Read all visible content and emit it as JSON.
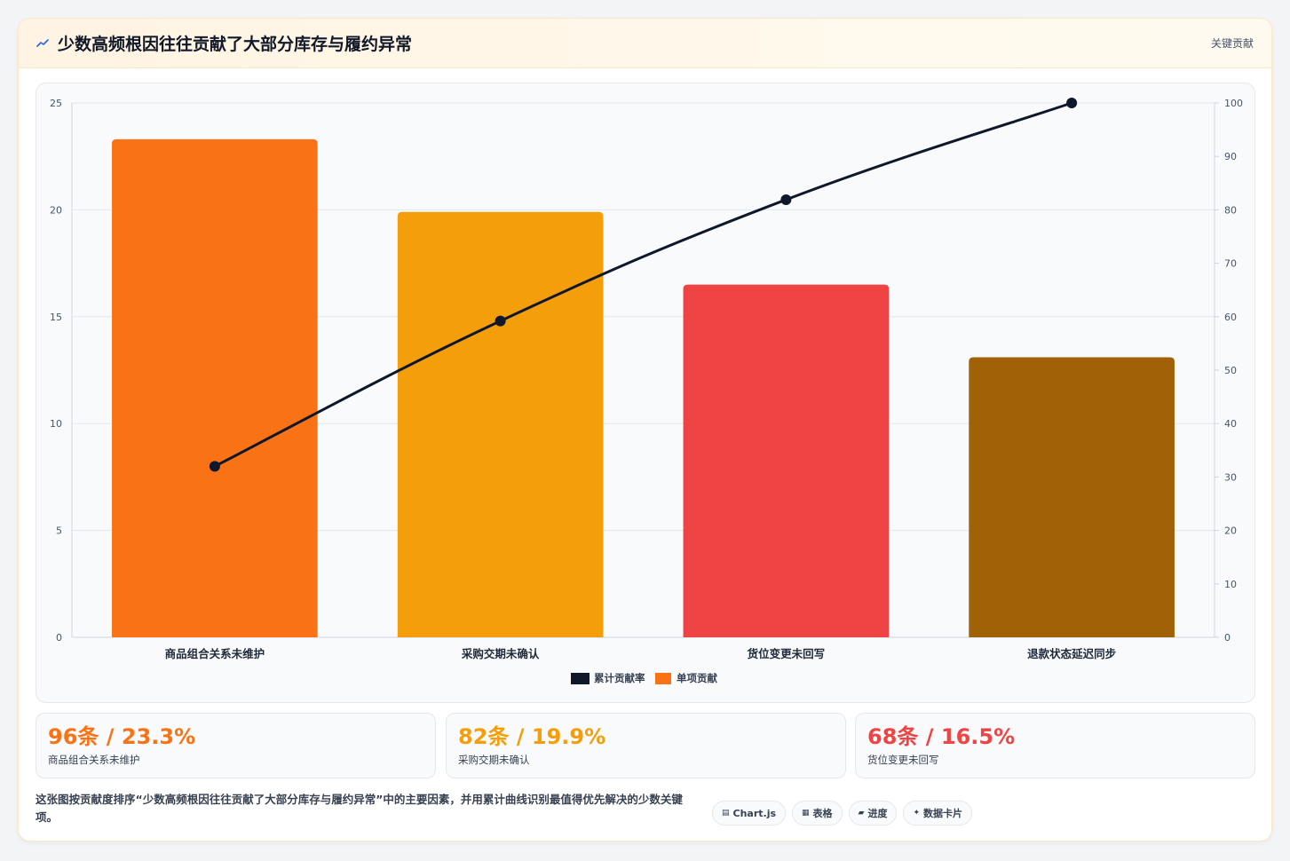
{
  "header": {
    "title": "少数高频根因往往贡献了大部分库存与履约异常",
    "right_label": "关键贡献"
  },
  "chart_data": {
    "type": "bar",
    "categories": [
      "商品组合关系未维护",
      "采购交期未确认",
      "货位变更未回写",
      "退款状态延迟同步"
    ],
    "series": [
      {
        "name": "累计贡献率",
        "type": "line",
        "axis": "right",
        "color": "#0f172a",
        "values": [
          32.0,
          59.2,
          81.9,
          100
        ]
      },
      {
        "name": "单项贡献",
        "type": "bar",
        "axis": "left",
        "colors": [
          "#f97316",
          "#f59e0b",
          "#ef4444",
          "#a16207"
        ],
        "values": [
          23.3,
          19.9,
          16.5,
          13.1
        ]
      }
    ],
    "y_left": {
      "min": 0,
      "max": 25,
      "ticks": [
        "0",
        "5",
        "10",
        "15",
        "20",
        "25"
      ]
    },
    "y_right": {
      "min": 0,
      "max": 100,
      "ticks": [
        "0",
        "10",
        "20",
        "30",
        "40",
        "50",
        "60",
        "70",
        "80",
        "90",
        "100"
      ]
    },
    "grid": true,
    "legend": "bottom"
  },
  "stats": [
    {
      "value": "96条 / 23.3%",
      "label": "商品组合关系未维护",
      "color": "#f97316"
    },
    {
      "value": "82条 / 19.9%",
      "label": "采购交期未确认",
      "color": "#f59e0b"
    },
    {
      "value": "68条 / 16.5%",
      "label": "货位变更未回写",
      "color": "#ef4444"
    }
  ],
  "description": "这张图按贡献度排序“少数高频根因往往贡献了大部分库存与履约异常”中的主要因素，并用累计曲线识别最值得优先解决的少数关键项。",
  "tags": [
    {
      "icon": "▤",
      "icon_name": "chart-icon",
      "label": "Chart.js"
    },
    {
      "icon": "▦",
      "icon_name": "table-icon",
      "label": "表格"
    },
    {
      "icon": "▰",
      "icon_name": "progress-icon",
      "label": "进度"
    },
    {
      "icon": "✦",
      "icon_name": "sparkle-icon",
      "label": "数据卡片"
    }
  ]
}
